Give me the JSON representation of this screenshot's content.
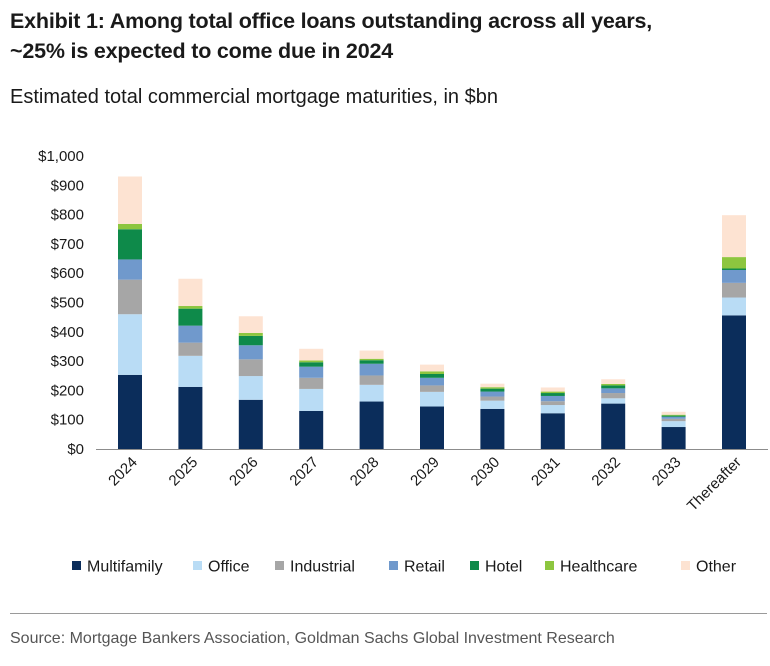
{
  "header": {
    "title_line1": "Exhibit 1: Among total office loans outstanding across all years,",
    "title_line2": "~25% is expected to come due in 2024",
    "subtitle": "Estimated total commercial mortgage maturities, in $bn"
  },
  "footer": {
    "source": "Source: Mortgage Bankers Association, Goldman Sachs Global Investment Research"
  },
  "chart_data": {
    "type": "bar",
    "stacked": true,
    "title": "Exhibit 1: Among total office loans outstanding across all years, ~25% is expected to come due in 2024",
    "subtitle": "Estimated total commercial mortgage maturities, in $bn",
    "xlabel": "",
    "ylabel": "",
    "ylim": [
      0,
      1000
    ],
    "yticks": [
      "$0",
      "$100",
      "$200",
      "$300",
      "$400",
      "$500",
      "$600",
      "$700",
      "$800",
      "$900",
      "$1,000"
    ],
    "ytick_values": [
      0,
      100,
      200,
      300,
      400,
      500,
      600,
      700,
      800,
      900,
      1000
    ],
    "grid": false,
    "legend_position": "bottom",
    "categories": [
      "2024",
      "2025",
      "2026",
      "2027",
      "2028",
      "2029",
      "2030",
      "2031",
      "2032",
      "2033",
      "Thereafter"
    ],
    "series": [
      {
        "name": "Multifamily",
        "color": "#0b2d5b",
        "values": [
          253,
          212,
          168,
          130,
          162,
          145,
          137,
          122,
          155,
          75,
          456
        ]
      },
      {
        "name": "Office",
        "color": "#b9dcf5",
        "values": [
          207,
          106,
          81,
          75,
          57,
          50,
          28,
          28,
          18,
          20,
          61
        ]
      },
      {
        "name": "Industrial",
        "color": "#a6a6a6",
        "values": [
          118,
          45,
          57,
          38,
          32,
          22,
          14,
          13,
          18,
          8,
          50
        ]
      },
      {
        "name": "Retail",
        "color": "#7099cc",
        "values": [
          69,
          58,
          48,
          38,
          40,
          26,
          17,
          18,
          16,
          7,
          44
        ]
      },
      {
        "name": "Hotel",
        "color": "#0e8a4a",
        "values": [
          103,
          58,
          32,
          15,
          12,
          13,
          10,
          10,
          10,
          4,
          5
        ]
      },
      {
        "name": "Healthcare",
        "color": "#8dc63f",
        "values": [
          18,
          9,
          10,
          6,
          5,
          9,
          5,
          5,
          5,
          3,
          39
        ]
      },
      {
        "name": "Other",
        "color": "#fde3d2",
        "values": [
          162,
          93,
          57,
          40,
          28,
          23,
          12,
          14,
          16,
          10,
          143
        ]
      }
    ]
  }
}
